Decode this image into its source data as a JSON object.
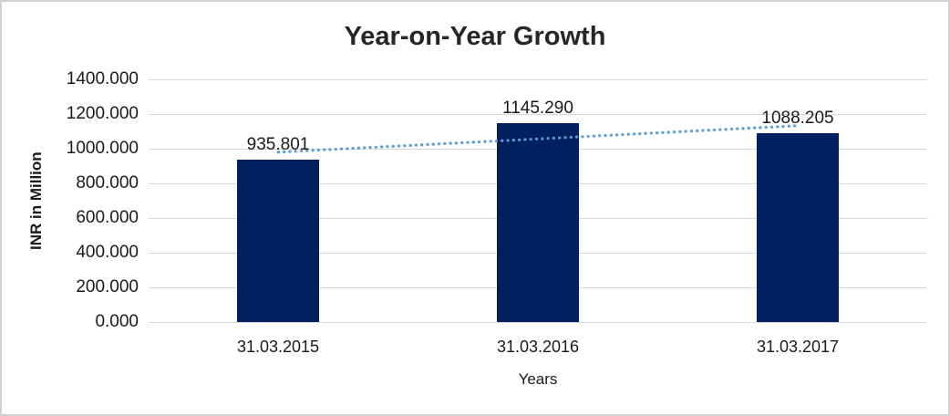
{
  "chart_data": {
    "type": "bar",
    "title": "Year-on-Year Growth",
    "xlabel": "Years",
    "ylabel": "INR in Million",
    "categories": [
      "31.03.2015",
      "31.03.2016",
      "31.03.2017"
    ],
    "values": [
      935.801,
      1145.29,
      1088.205
    ],
    "data_labels": [
      "935.801",
      "1145.290",
      "1088.205"
    ],
    "ylim": [
      0,
      1400
    ],
    "y_tick_step": 200,
    "y_tick_labels": [
      "0.000",
      "200.000",
      "400.000",
      "600.000",
      "800.000",
      "1000.000",
      "1200.000",
      "1400.000"
    ],
    "grid": true,
    "legend": "none",
    "colors": {
      "bar": "#002060",
      "trendline": "#5b9bd5",
      "gridline": "#d9d9d9",
      "text": "#1a1a1a",
      "frame_border": "#d0d0d0"
    },
    "trendline": {
      "type": "linear",
      "style": "dotted"
    }
  }
}
